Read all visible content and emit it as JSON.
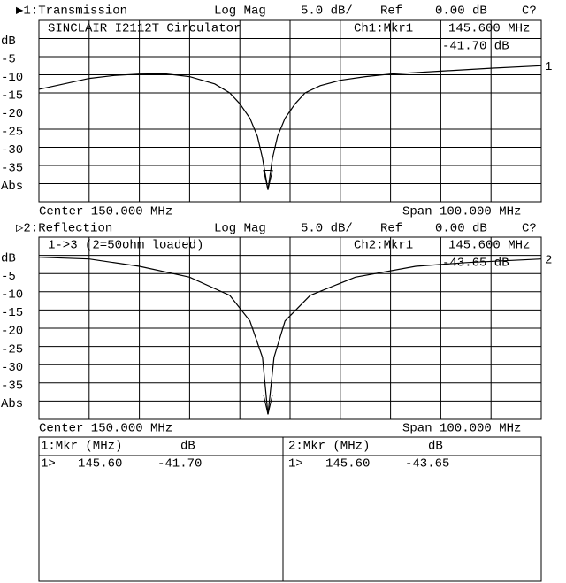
{
  "chart_data": [
    {
      "type": "line",
      "header": "▶1:Transmission",
      "format": "Log Mag",
      "scale": "5.0 dB/",
      "ref_label": "Ref",
      "ref": "0.00 dB",
      "status": "C?",
      "title": "SINCLAIR I2112T Circulator",
      "marker_name": "Ch1:Mkr1",
      "marker_freq": "145.600 MHz",
      "marker_level": "-41.70 dB",
      "center": "Center 150.000 MHz",
      "span": "Span 100.000 MHz",
      "trace_label": "1",
      "xlim": [
        100,
        200
      ],
      "ylim": [
        -45,
        5
      ],
      "yticks": [
        {
          "value": 0,
          "label": "dB"
        },
        -5,
        -10,
        -15,
        -20,
        -25,
        -30,
        -35,
        {
          "value": -40,
          "label": "Abs"
        }
      ],
      "x": [
        100,
        105,
        110,
        115,
        120,
        125,
        130,
        135,
        138,
        140,
        142,
        143.5,
        144.5,
        145.6,
        146.5,
        147.5,
        149,
        151,
        153,
        156,
        160,
        165,
        170,
        180,
        190,
        200
      ],
      "values": [
        -14,
        -12.5,
        -11,
        -10.2,
        -9.8,
        -9.7,
        -10.5,
        -12.5,
        -15,
        -18,
        -22,
        -27,
        -33,
        -41.7,
        -33,
        -27,
        -22,
        -18,
        -15,
        -13,
        -11.5,
        -10.5,
        -9.8,
        -9,
        -8.2,
        -7.5
      ],
      "marker": {
        "x": 145.6,
        "y": -41.7
      },
      "color": "#000000"
    },
    {
      "type": "line",
      "header": "▷2:Reflection",
      "format": "Log Mag",
      "scale": "5.0 dB/",
      "ref_label": "Ref",
      "ref": "0.00 dB",
      "status": "C?",
      "title": "1->3 (2=50ohm loaded)",
      "marker_name": "Ch2:Mkr1",
      "marker_freq": "145.600 MHz",
      "marker_level": "-43.65 dB",
      "center": "Center 150.000 MHz",
      "span": "Span 100.000 MHz",
      "trace_label": "2",
      "xlim": [
        100,
        200
      ],
      "ylim": [
        -45,
        5
      ],
      "yticks": [
        {
          "value": 0,
          "label": "dB"
        },
        -5,
        -10,
        -15,
        -20,
        -25,
        -30,
        -35,
        {
          "value": -40,
          "label": "Abs"
        }
      ],
      "x": [
        100,
        110,
        120,
        130,
        138,
        142,
        144.5,
        145.6,
        146.8,
        149,
        154,
        163,
        175,
        185,
        200
      ],
      "values": [
        -0.5,
        -1,
        -3,
        -6,
        -11,
        -18,
        -28,
        -43.65,
        -28,
        -18,
        -11,
        -6,
        -3,
        -2,
        -1
      ],
      "marker": {
        "x": 145.6,
        "y": -43.65
      },
      "color": "#000000"
    }
  ],
  "marker_table": [
    {
      "header": [
        "1:Mkr (MHz)",
        "dB"
      ],
      "rows": [
        [
          "1>",
          "145.60",
          "-41.70"
        ]
      ]
    },
    {
      "header": [
        "2:Mkr (MHz)",
        "dB"
      ],
      "rows": [
        [
          "1>",
          "145.60",
          "-43.65"
        ]
      ]
    }
  ]
}
